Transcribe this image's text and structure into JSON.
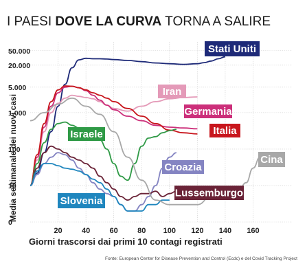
{
  "title": {
    "part1": "I PAESI ",
    "part2": "DOVE LA CURVA",
    "part3": " TORNA A SALIRE"
  },
  "source": "Fonte: European Center for Disease Prevention and Control (Ecdc) e del Covid Tracking Project",
  "chart_data": {
    "type": "line",
    "title": "I PAESI DOVE LA CURVA TORNA A SALIRE",
    "xlabel": "Giorni trascorsi dai primi 10 contagi registrati",
    "ylabel": "Media settimanale dei nuovi casi",
    "y_scale": "log",
    "x_ticks": [
      20,
      40,
      60,
      80,
      100,
      120,
      140,
      160
    ],
    "y_ticks": [
      {
        "value": 1,
        "label": "0"
      },
      {
        "value": 10,
        "label": "10"
      },
      {
        "value": 100,
        "label": "100"
      },
      {
        "value": 1000,
        "label": "1.000"
      },
      {
        "value": 5000,
        "label": "5.000"
      },
      {
        "value": 20000,
        "label": "20.000"
      },
      {
        "value": 50000,
        "label": "50.000"
      }
    ],
    "xlim": [
      0,
      178
    ],
    "ylim": [
      1,
      70000
    ],
    "grid": true,
    "series": [
      {
        "name": "Stati Uniti",
        "color": "#1e2a78",
        "x": [
          0,
          5,
          10,
          15,
          20,
          25,
          30,
          35,
          40,
          45,
          50,
          55,
          60,
          70,
          80,
          90,
          100,
          110,
          120,
          125,
          130,
          135,
          140
        ],
        "y": [
          10,
          22,
          80,
          300,
          1500,
          6000,
          17000,
          28000,
          31000,
          30000,
          30000,
          29500,
          28500,
          27000,
          25000,
          23000,
          22000,
          21000,
          22000,
          23500,
          26000,
          30000,
          34000
        ]
      },
      {
        "name": "Iran",
        "color": "#e49ab8",
        "x": [
          0,
          5,
          10,
          15,
          20,
          25,
          30,
          35,
          40,
          45,
          50,
          55,
          60,
          70,
          80,
          90,
          100,
          110,
          120
        ],
        "y": [
          10,
          50,
          300,
          1000,
          1800,
          2500,
          3000,
          2800,
          2600,
          2400,
          2000,
          1600,
          1300,
          1100,
          1500,
          2000,
          2400,
          2600,
          2700
        ]
      },
      {
        "name": "Germania",
        "color": "#cc2f7a",
        "x": [
          0,
          5,
          10,
          15,
          20,
          25,
          30,
          35,
          40,
          45,
          50,
          55,
          60,
          70,
          80,
          90,
          100,
          110,
          120
        ],
        "y": [
          10,
          60,
          400,
          1500,
          3500,
          5000,
          5300,
          4800,
          4000,
          3000,
          2200,
          1600,
          1200,
          800,
          600,
          450,
          400,
          380,
          360
        ]
      },
      {
        "name": "Italia",
        "color": "#c8161d",
        "x": [
          0,
          5,
          10,
          15,
          20,
          25,
          30,
          35,
          40,
          45,
          50,
          55,
          60,
          70,
          80,
          90,
          100,
          110,
          120
        ],
        "y": [
          10,
          70,
          500,
          2000,
          4200,
          5400,
          5300,
          4800,
          4200,
          3500,
          3000,
          2500,
          2000,
          1300,
          800,
          500,
          330,
          280,
          260
        ]
      },
      {
        "name": "Israele",
        "color": "#2f9a46",
        "x": [
          0,
          5,
          10,
          15,
          20,
          25,
          30,
          35,
          40,
          45,
          50,
          55,
          60,
          65,
          70,
          75,
          80,
          85,
          90,
          95,
          100,
          105
        ],
        "y": [
          10,
          40,
          150,
          350,
          500,
          550,
          450,
          380,
          330,
          250,
          180,
          100,
          40,
          18,
          14,
          40,
          120,
          200,
          220,
          280,
          320,
          350
        ]
      },
      {
        "name": "Croazia",
        "color": "#8484c2",
        "x": [
          0,
          5,
          10,
          15,
          20,
          25,
          30,
          35,
          40,
          45,
          50,
          55,
          60,
          65,
          70,
          75,
          80,
          85,
          90,
          95,
          100,
          105
        ],
        "y": [
          10,
          20,
          40,
          60,
          80,
          70,
          50,
          30,
          20,
          12,
          8,
          6,
          5,
          3,
          2,
          2,
          3,
          5,
          10,
          30,
          60,
          80
        ]
      },
      {
        "name": "Lussemburgo",
        "color": "#6a2337",
        "x": [
          0,
          5,
          10,
          15,
          20,
          25,
          30,
          35,
          40,
          45,
          50,
          55,
          60,
          65,
          70,
          75,
          80,
          85,
          90,
          95,
          100,
          105
        ],
        "y": [
          10,
          30,
          80,
          120,
          100,
          80,
          60,
          50,
          40,
          30,
          18,
          12,
          8,
          5,
          4,
          5,
          6,
          6,
          7,
          5,
          6,
          7
        ]
      },
      {
        "name": "Slovenia",
        "color": "#1f86be",
        "x": [
          0,
          5,
          10,
          15,
          20,
          25,
          30,
          35,
          40,
          45,
          50,
          55,
          60,
          65,
          70,
          75,
          80,
          85,
          90,
          95,
          100
        ],
        "y": [
          10,
          25,
          40,
          40,
          35,
          30,
          28,
          25,
          20,
          15,
          12,
          8,
          5,
          3,
          2,
          2,
          2,
          3,
          3,
          4,
          4
        ]
      },
      {
        "name": "Cina",
        "color": "#a8a8a8",
        "x": [
          0,
          10,
          20,
          30,
          40,
          50,
          60,
          70,
          80,
          90,
          100,
          110,
          120,
          130,
          140,
          150,
          155,
          160,
          165
        ],
        "y": [
          600,
          1000,
          1700,
          2500,
          1500,
          900,
          300,
          60,
          14,
          4,
          3,
          3,
          3,
          5,
          6,
          8,
          12,
          30,
          60
        ]
      }
    ]
  },
  "labels": {
    "stati_uniti": "Stati Uniti",
    "iran": "Iran",
    "germania": "Germania",
    "italia": "Italia",
    "israele": "Israele",
    "croazia": "Croazia",
    "cina": "Cina",
    "lussemburgo": "Lussemburgo",
    "slovenia": "Slovenia"
  }
}
